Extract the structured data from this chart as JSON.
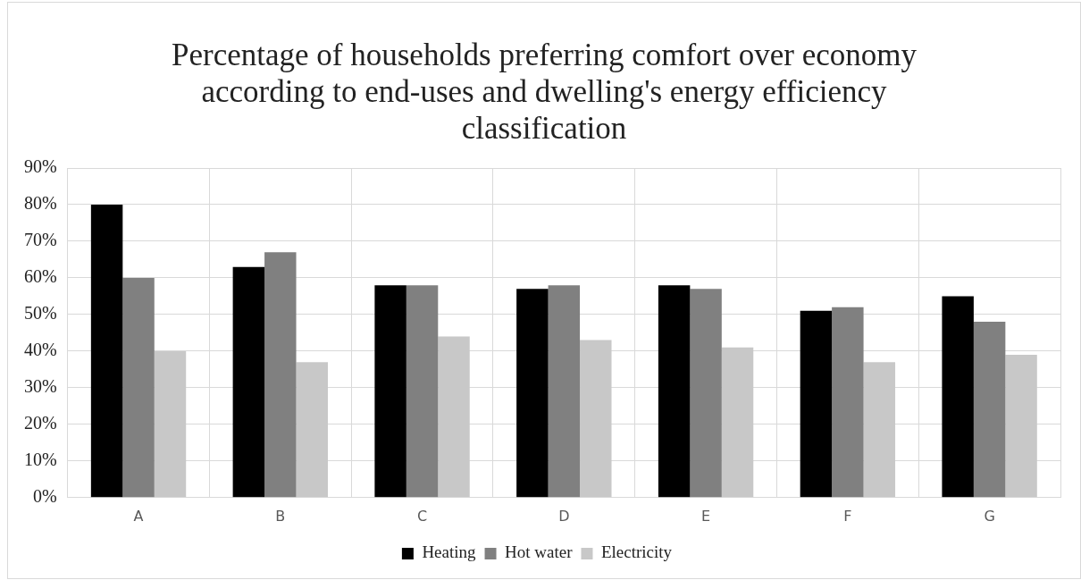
{
  "chart_data": {
    "type": "bar",
    "title": "Percentage of households preferring comfort over economy according to end-uses and dwelling's energy efficiency classification",
    "categories": [
      "A",
      "B",
      "C",
      "D",
      "E",
      "F",
      "G"
    ],
    "series": [
      {
        "name": "Heating",
        "color": "#000000",
        "values": [
          80,
          63,
          58,
          57,
          58,
          51,
          55
        ]
      },
      {
        "name": "Hot water",
        "color": "#808080",
        "values": [
          60,
          67,
          58,
          58,
          57,
          52,
          48
        ]
      },
      {
        "name": "Electricity",
        "color": "#c8c8c8",
        "values": [
          40,
          37,
          44,
          43,
          41,
          37,
          39
        ]
      }
    ],
    "ylim": [
      0,
      90
    ],
    "yticks": [
      {
        "value": 0,
        "label": "0%"
      },
      {
        "value": 10,
        "label": "10%"
      },
      {
        "value": 20,
        "label": "20%"
      },
      {
        "value": 30,
        "label": "30%"
      },
      {
        "value": 40,
        "label": "40%"
      },
      {
        "value": 50,
        "label": "50%"
      },
      {
        "value": 60,
        "label": "60%"
      },
      {
        "value": 70,
        "label": "70%"
      },
      {
        "value": 80,
        "label": "80%"
      },
      {
        "value": 90,
        "label": "90%"
      }
    ],
    "grid": true,
    "legend": "bottom"
  }
}
